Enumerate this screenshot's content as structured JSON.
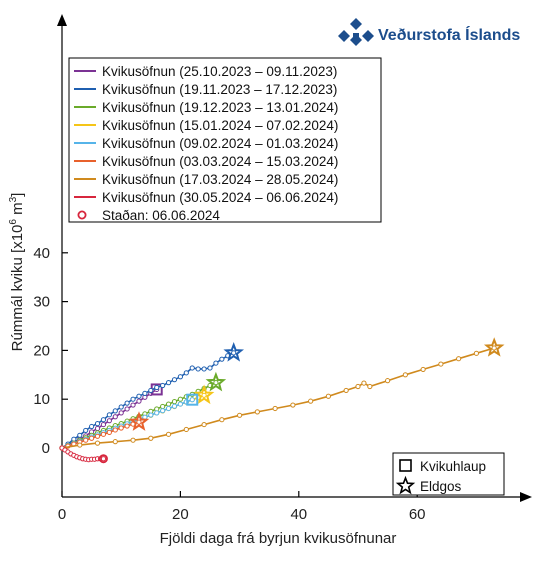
{
  "logo": {
    "text": "Veðurstofa Íslands",
    "color": "#1c4d8c"
  },
  "chart_data": {
    "type": "line",
    "xlabel": "Fjöldi daga frá byrjun kvikusöfnunar",
    "ylabel_main": "Rúmmál kviku [x10",
    "ylabel_sup": "6",
    "ylabel_unit": " m",
    "ylabel_sup2": "3",
    "ylabel_end": "]",
    "xlim": [
      0,
      78
    ],
    "ylim": [
      -5,
      42
    ],
    "xticks": [
      0,
      20,
      40,
      60
    ],
    "yticks": [
      0,
      10,
      20,
      30,
      40
    ],
    "grid": false,
    "legend_position": "top-left",
    "series": [
      {
        "name": "Kvikusöfnun (25.10.2023 – 09.11.2023)",
        "color": "#7b3294",
        "end_marker": "square",
        "x": [
          0,
          1,
          2,
          3,
          4,
          5,
          6,
          7,
          8,
          9,
          10,
          11,
          12,
          13,
          14,
          15,
          16
        ],
        "y": [
          0,
          0.6,
          1.2,
          1.8,
          2.5,
          3.3,
          4.0,
          4.8,
          5.6,
          6.4,
          7.2,
          8.0,
          8.8,
          9.6,
          10.4,
          11.2,
          12.0
        ]
      },
      {
        "name": "Kvikusöfnun (19.11.2023 – 17.12.2023)",
        "color": "#1f5fb0",
        "end_marker": "star",
        "x": [
          0,
          1,
          2,
          3,
          4,
          5,
          6,
          7,
          8,
          9,
          10,
          11,
          12,
          13,
          14,
          15,
          16,
          17,
          18,
          19,
          20,
          21,
          22,
          23,
          24,
          25,
          26,
          27,
          28,
          29
        ],
        "y": [
          0,
          0.8,
          1.8,
          2.6,
          3.6,
          4.4,
          5.0,
          5.8,
          6.8,
          7.6,
          8.4,
          9.2,
          10.0,
          10.6,
          11.2,
          11.8,
          12.4,
          12.8,
          13.4,
          14.0,
          14.6,
          15.4,
          16.4,
          16.2,
          16.2,
          16.4,
          17.4,
          18.2,
          18.9,
          19.5
        ]
      },
      {
        "name": "Kvikusöfnun (19.12.2023 – 13.01.2024)",
        "color": "#6aaa2a",
        "end_marker": "star",
        "x": [
          0,
          1,
          2,
          3,
          4,
          5,
          6,
          7,
          8,
          9,
          10,
          11,
          12,
          13,
          14,
          15,
          16,
          17,
          18,
          19,
          20,
          21,
          22,
          23,
          24,
          25,
          26
        ],
        "y": [
          0,
          0.5,
          1.0,
          1.6,
          2.1,
          2.6,
          3.1,
          3.6,
          4.1,
          4.6,
          5.0,
          5.5,
          6.0,
          6.5,
          7.0,
          7.5,
          8.0,
          8.5,
          9.0,
          9.5,
          10.0,
          10.5,
          11.0,
          11.6,
          12.2,
          12.8,
          13.4
        ]
      },
      {
        "name": "Kvikusöfnun (15.01.2024 – 07.02.2024)",
        "color": "#f5c518",
        "end_marker": "star",
        "x": [
          0,
          1,
          2,
          3,
          4,
          5,
          6,
          7,
          8,
          9,
          10,
          11,
          12,
          13,
          14,
          15,
          16,
          17,
          18,
          19,
          20,
          21,
          22,
          23,
          24
        ],
        "y": [
          0,
          0.4,
          0.9,
          1.3,
          1.8,
          2.2,
          2.7,
          3.1,
          3.6,
          4.0,
          4.5,
          4.9,
          5.4,
          5.8,
          6.3,
          6.7,
          7.2,
          7.6,
          8.1,
          8.5,
          9.0,
          9.4,
          9.9,
          10.3,
          10.8
        ]
      },
      {
        "name": "Kvikusöfnun (09.02.2024 – 01.03.2024)",
        "color": "#56b4e9",
        "end_marker": "square",
        "x": [
          0,
          1,
          2,
          3,
          4,
          5,
          6,
          7,
          8,
          9,
          10,
          11,
          12,
          13,
          14,
          15,
          16,
          17,
          18,
          19,
          20,
          21,
          22
        ],
        "y": [
          0,
          0.45,
          0.9,
          1.35,
          1.8,
          2.25,
          2.7,
          3.15,
          3.6,
          4.05,
          4.5,
          4.95,
          5.4,
          5.85,
          6.3,
          6.75,
          7.2,
          7.65,
          8.1,
          8.55,
          9.0,
          9.45,
          9.9
        ]
      },
      {
        "name": "Kvikusöfnun (03.03.2024 – 15.03.2024)",
        "color": "#e8612c",
        "end_marker": "star",
        "x": [
          0,
          1,
          2,
          3,
          4,
          5,
          6,
          7,
          8,
          9,
          10,
          11,
          12,
          13
        ],
        "y": [
          0,
          0.4,
          0.8,
          1.2,
          1.6,
          2.0,
          2.4,
          2.8,
          3.2,
          3.7,
          4.1,
          4.5,
          4.9,
          5.3
        ]
      },
      {
        "name": "Kvikusöfnun (17.03.2024 – 28.05.2024)",
        "color": "#d08a1e",
        "end_marker": "star",
        "x": [
          0,
          3,
          6,
          9,
          12,
          15,
          18,
          21,
          24,
          27,
          30,
          33,
          36,
          39,
          42,
          45,
          48,
          50,
          51,
          52,
          55,
          58,
          61,
          64,
          67,
          70,
          73
        ],
        "y": [
          0,
          0.6,
          1.0,
          1.3,
          1.6,
          2.0,
          2.8,
          3.8,
          4.8,
          5.8,
          6.7,
          7.4,
          8.1,
          8.8,
          9.6,
          10.6,
          11.8,
          12.6,
          13.3,
          12.6,
          13.8,
          15.0,
          16.1,
          17.2,
          18.3,
          19.4,
          20.5
        ]
      },
      {
        "name": "Kvikusöfnun (30.05.2024 – 06.06.2024)",
        "color": "#d7263d",
        "end_marker": "none",
        "x": [
          0,
          0.5,
          1,
          1.5,
          2,
          2.5,
          3,
          3.5,
          4,
          4.5,
          5,
          5.5,
          6,
          6.5,
          7
        ],
        "y": [
          0,
          -0.4,
          -0.8,
          -1.2,
          -1.5,
          -1.8,
          -2.0,
          -2.2,
          -2.3,
          -2.4,
          -2.3,
          -2.3,
          -2.2,
          -2.2,
          -2.2
        ]
      }
    ],
    "current": {
      "label": "Staðan: 06.06.2024",
      "x": 7,
      "y": -2.2,
      "color": "#d7263d"
    },
    "marker_legend": [
      {
        "symbol": "square",
        "label": "Kvikuhlaup"
      },
      {
        "symbol": "star",
        "label": "Eldgos"
      }
    ]
  }
}
